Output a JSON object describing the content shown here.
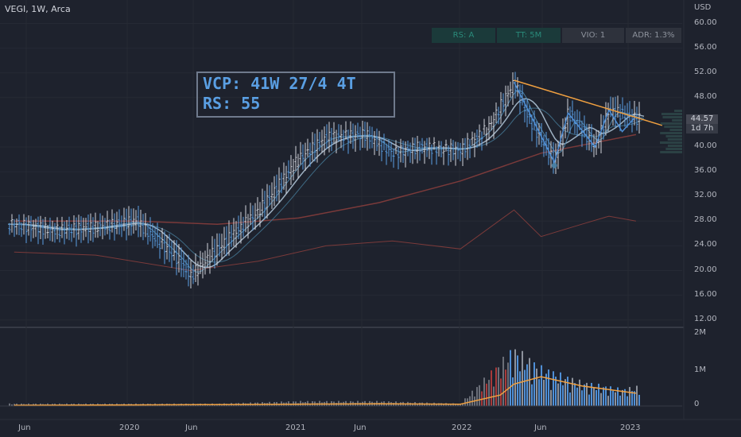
{
  "header": {
    "symbol_line": "VEGI, 1W, Arca"
  },
  "metrics": [
    {
      "label": "RS: A",
      "style": "teal"
    },
    {
      "label": "TT: 5M",
      "style": "teal"
    },
    {
      "label": "VIO: 1",
      "style": "grey"
    },
    {
      "label": "ADR: 1.3%",
      "style": "grey"
    }
  ],
  "annotation": {
    "line1": "VCP: 41W 27/4 4T",
    "line2": "RS: 55"
  },
  "price_axis": {
    "currency": "USD",
    "ticks": [
      "60.00",
      "56.00",
      "52.00",
      "48.00",
      "40.00",
      "36.00",
      "32.00",
      "28.00",
      "24.00",
      "20.00",
      "16.00",
      "12.00"
    ],
    "last_price": "44.57",
    "countdown": "1d 7h"
  },
  "volume_axis": {
    "ticks": [
      "2M",
      "1M",
      "0"
    ]
  },
  "time_axis": {
    "ticks": [
      "Jun",
      "2020",
      "Jun",
      "2021",
      "Jun",
      "2022",
      "Jun",
      "2023"
    ]
  },
  "colors": {
    "background": "#1e222d",
    "up_candle": "#d1d4dc",
    "ma_fast": "#4a7fa3",
    "ma_mid": "#9eb1c2",
    "ma_slow": "#7b3a3a",
    "rs_line": "#7b3a3a",
    "trendline": "#f0a040",
    "vcp_text": "#5a9fe3",
    "volume_avg": "#f0a040"
  },
  "chart_data": {
    "type": "line",
    "title": "",
    "xlabel": "",
    "ylabel": "",
    "ylim": [
      10,
      62
    ],
    "grid": true,
    "series": [
      {
        "name": "",
        "kind": "price_close",
        "x": [
          "2019-03",
          "2019-06",
          "2019-09",
          "2019-12",
          "2020-03",
          "2020-04",
          "2020-06",
          "2020-09",
          "2020-12",
          "2021-02",
          "2021-05",
          "2021-07",
          "2021-09",
          "2021-12",
          "2022-02",
          "2022-04",
          "2022-05",
          "2022-07",
          "2022-08",
          "2022-10",
          "2022-11",
          "2023-01"
        ],
        "values": [
          27.5,
          26.5,
          27.0,
          28.0,
          22.0,
          19.0,
          23.5,
          29.5,
          38.0,
          41.5,
          42.0,
          39.0,
          40.0,
          39.5,
          43.0,
          50.5,
          45.0,
          37.5,
          45.5,
          40.0,
          46.0,
          44.57
        ]
      },
      {
        "name": "",
        "kind": "ma_long",
        "x": [
          "2019-03",
          "2019-12",
          "2020-06",
          "2020-12",
          "2021-06",
          "2021-12",
          "2022-06",
          "2023-01"
        ],
        "values": [
          28.0,
          28.0,
          27.5,
          28.5,
          31.0,
          34.5,
          39.0,
          42.0
        ]
      },
      {
        "name": "",
        "kind": "relative_strength_line",
        "x": [
          "2019-03",
          "2019-09",
          "2020-04",
          "2020-09",
          "2021-02",
          "2021-07",
          "2021-12",
          "2022-04",
          "2022-06",
          "2022-09",
          "2022-11",
          "2023-01"
        ],
        "values": [
          23.0,
          22.5,
          20.0,
          21.5,
          24.0,
          24.8,
          23.5,
          29.8,
          25.5,
          27.5,
          28.8,
          28.0
        ]
      },
      {
        "name": "",
        "kind": "trendline",
        "x": [
          "2022-04",
          "2023-03"
        ],
        "values": [
          50.8,
          43.5
        ]
      }
    ],
    "volume": {
      "x": [
        "2019-03",
        "2019-12",
        "2020-06",
        "2020-12",
        "2021-06",
        "2021-12",
        "2022-03",
        "2022-04",
        "2022-06",
        "2022-09",
        "2022-12",
        "2023-01"
      ],
      "values": [
        0.05,
        0.05,
        0.05,
        0.1,
        0.1,
        0.05,
        0.9,
        1.2,
        0.8,
        0.5,
        0.35,
        0.4
      ],
      "avg": [
        0.02,
        0.03,
        0.04,
        0.05,
        0.06,
        0.05,
        0.3,
        0.6,
        0.8,
        0.55,
        0.4,
        0.35
      ]
    }
  }
}
